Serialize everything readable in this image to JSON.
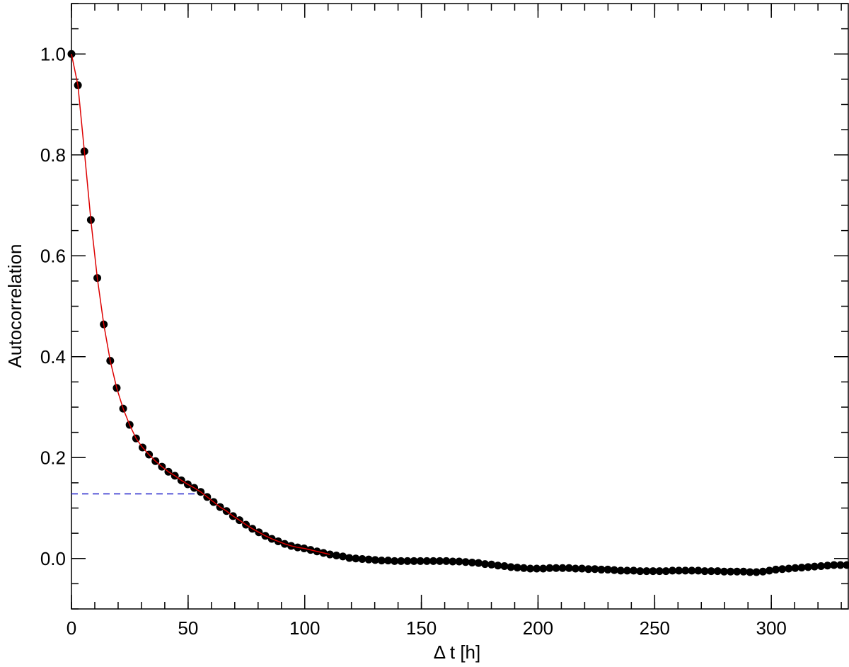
{
  "chart_data": {
    "type": "scatter",
    "xlabel": "Δ t [h]",
    "ylabel": "Autocorrelation",
    "xlim": [
      0,
      333
    ],
    "ylim": [
      -0.1,
      1.1
    ],
    "xticks": [
      0,
      50,
      100,
      150,
      200,
      250,
      300
    ],
    "yticks": [
      {
        "value": 0,
        "label": "0.0"
      },
      {
        "value": 0.2,
        "label": "0.2"
      },
      {
        "value": 0.4,
        "label": "0.4"
      },
      {
        "value": 0.6,
        "label": "0.6"
      },
      {
        "value": 0.8,
        "label": "0.8"
      },
      {
        "value": 1,
        "label": "1.0"
      }
    ],
    "xminor_step": 10,
    "yminor_step": 0.05,
    "series": [
      {
        "color": "#000000",
        "x": [
          0,
          2.77,
          5.54,
          8.31,
          11.08,
          13.85,
          16.62,
          19.39,
          22.16,
          24.93,
          27.7,
          30.47,
          33.24,
          36.01,
          38.78,
          41.55,
          44.32,
          47.09,
          49.86,
          52.63,
          55.4,
          58.17,
          60.94,
          63.71,
          66.48,
          69.25,
          72.02,
          74.79,
          77.56,
          80.33,
          83.1,
          85.87,
          88.64,
          91.41,
          94.18,
          96.95,
          99.72,
          102.49,
          105.26,
          108.03,
          110.8,
          113.57,
          116.34,
          119.11,
          121.88,
          124.65,
          127.42,
          130.19,
          132.96,
          135.73,
          138.5,
          141.27,
          144.04,
          146.81,
          149.58,
          152.35,
          155.12,
          157.89,
          160.66,
          163.43,
          166.2,
          168.97,
          171.74,
          174.51,
          177.28,
          180.05,
          182.82,
          185.59,
          188.36,
          191.13,
          193.9,
          196.67,
          199.44,
          202.21,
          204.98,
          207.75,
          210.52,
          213.29,
          216.06,
          218.83,
          221.6,
          224.37,
          227.14,
          229.91,
          232.68,
          235.45,
          238.22,
          240.99,
          243.76,
          246.53,
          249.3,
          252.07,
          254.84,
          257.61,
          260.38,
          263.15,
          265.92,
          268.69,
          271.46,
          274.23,
          277,
          279.77,
          282.54,
          285.31,
          288.08,
          290.85,
          293.62,
          296.39,
          299.16,
          301.93,
          304.7,
          307.47,
          310.24,
          313.01,
          315.78,
          318.55,
          321.32,
          324.09,
          326.86,
          329.63,
          332.4
        ],
        "values": [
          1.0,
          0.938,
          0.807,
          0.671,
          0.556,
          0.464,
          0.392,
          0.338,
          0.297,
          0.265,
          0.238,
          0.22,
          0.206,
          0.193,
          0.182,
          0.172,
          0.164,
          0.155,
          0.147,
          0.14,
          0.132,
          0.122,
          0.112,
          0.102,
          0.094,
          0.084,
          0.076,
          0.067,
          0.059,
          0.052,
          0.045,
          0.039,
          0.034,
          0.029,
          0.025,
          0.022,
          0.02,
          0.017,
          0.014,
          0.011,
          0.008,
          0.006,
          0.004,
          0.001,
          0,
          -0.001,
          -0.002,
          -0.003,
          -0.004,
          -0.004,
          -0.005,
          -0.005,
          -0.005,
          -0.005,
          -0.005,
          -0.005,
          -0.005,
          -0.005,
          -0.005,
          -0.006,
          -0.006,
          -0.007,
          -0.008,
          -0.009,
          -0.011,
          -0.012,
          -0.014,
          -0.015,
          -0.017,
          -0.018,
          -0.019,
          -0.02,
          -0.02,
          -0.02,
          -0.019,
          -0.019,
          -0.019,
          -0.019,
          -0.02,
          -0.02,
          -0.021,
          -0.021,
          -0.022,
          -0.022,
          -0.023,
          -0.024,
          -0.024,
          -0.024,
          -0.025,
          -0.025,
          -0.025,
          -0.025,
          -0.025,
          -0.024,
          -0.024,
          -0.024,
          -0.024,
          -0.024,
          -0.025,
          -0.025,
          -0.025,
          -0.026,
          -0.026,
          -0.026,
          -0.026,
          -0.027,
          -0.027,
          -0.026,
          -0.024,
          -0.022,
          -0.021,
          -0.02,
          -0.019,
          -0.018,
          -0.017,
          -0.016,
          -0.015,
          -0.014,
          -0.013,
          -0.013,
          -0.013
        ]
      },
      {
        "type": "line",
        "color": "#dd0000",
        "x": [
          0,
          2.77,
          5.54,
          8.31,
          11.08,
          13.85,
          16.62,
          19.39,
          22.16,
          24.93,
          27.7,
          30.47,
          33.24,
          36.01,
          38.78,
          41.55,
          44.32,
          47.09,
          49.86,
          52.63,
          55.4,
          58.17,
          60.94,
          63.71,
          66.48,
          69.25,
          72.02,
          74.79,
          77.56,
          80.33,
          83.1,
          85.87,
          88.64,
          91.41,
          94.18,
          96.95,
          99.72,
          102.49,
          105.26,
          108.03,
          110.8
        ],
        "values": [
          1.0,
          0.938,
          0.807,
          0.671,
          0.556,
          0.464,
          0.392,
          0.338,
          0.297,
          0.265,
          0.238,
          0.22,
          0.206,
          0.193,
          0.182,
          0.172,
          0.164,
          0.155,
          0.147,
          0.14,
          0.132,
          0.122,
          0.112,
          0.102,
          0.094,
          0.084,
          0.076,
          0.067,
          0.059,
          0.052,
          0.045,
          0.039,
          0.034,
          0.029,
          0.025,
          0.022,
          0.02,
          0.017,
          0.014,
          0.011,
          0.008
        ]
      }
    ],
    "hline": {
      "y": 0.128,
      "x": [
        0,
        57
      ],
      "color": "#2222cc"
    }
  }
}
